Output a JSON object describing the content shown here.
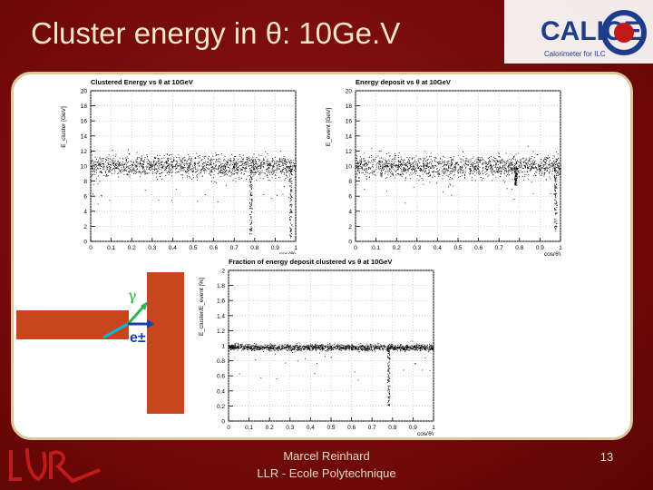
{
  "slide": {
    "title": "Cluster energy in θ: 10Ge.V",
    "footer_line1": "Marcel Reinhard",
    "footer_line2": "LLR - Ecole Polytechnique",
    "page_number": "13"
  },
  "logo": {
    "text": "CALICE",
    "subtitle": "Calorimeter for ILC"
  },
  "diagram": {
    "gamma_label": "γ",
    "electron_label": "e±"
  },
  "colors": {
    "background": "#7a0b0b",
    "title_text": "#f2e6c8",
    "slab": "#c8461e",
    "gamma_arrow": "#2db34a",
    "electron_arrow": "#1a3fa6",
    "scatter": "#000000"
  },
  "chart_data": [
    {
      "type": "scatter",
      "title": "Clustered Energy vs θ at 10GeV",
      "xlabel": "cos(θ)",
      "ylabel": "E_cluster [GeV]",
      "xlim": [
        0,
        1
      ],
      "ylim": [
        0,
        20
      ],
      "xticks": [
        "0",
        "0.1",
        "0.2",
        "0.3",
        "0.4",
        "0.5",
        "0.6",
        "0.7",
        "0.8",
        "0.9",
        "1"
      ],
      "yticks": [
        "0",
        "2",
        "4",
        "6",
        "8",
        "10",
        "12",
        "14",
        "16",
        "18",
        "20"
      ],
      "band_center": 10,
      "band_spread": 0.7,
      "dips": [
        {
          "x": 0.78,
          "min_y": 1
        },
        {
          "x": 0.975,
          "min_y": 0.5
        }
      ],
      "grid": true
    },
    {
      "type": "scatter",
      "title": "Energy deposit vs θ at 10GeV",
      "xlabel": "cos(θ)",
      "ylabel": "E_event [GeV]",
      "xlim": [
        0,
        1
      ],
      "ylim": [
        0,
        20
      ],
      "xticks": [
        "0",
        "0.1",
        "0.2",
        "0.3",
        "0.4",
        "0.5",
        "0.6",
        "0.7",
        "0.8",
        "0.9",
        "1"
      ],
      "yticks": [
        "0",
        "2",
        "4",
        "6",
        "8",
        "10",
        "12",
        "14",
        "16",
        "18",
        "20"
      ],
      "band_center": 10,
      "band_spread": 0.7,
      "dips": [
        {
          "x": 0.78,
          "min_y": 7.5
        },
        {
          "x": 0.975,
          "min_y": 1
        }
      ],
      "grid": true
    },
    {
      "type": "scatter",
      "title": "Fraction of energy deposit clustered vs θ at 10GeV",
      "xlabel": "cos(θ)",
      "ylabel": "E_cluster/E_event [%]",
      "xlim": [
        0,
        1
      ],
      "ylim": [
        0,
        2
      ],
      "xticks": [
        "0",
        "0.1",
        "0.2",
        "0.3",
        "0.4",
        "0.5",
        "0.6",
        "0.7",
        "0.8",
        "0.9",
        "1"
      ],
      "yticks": [
        "0",
        "0.2",
        "0.4",
        "0.6",
        "0.8",
        "1",
        "1.2",
        "1.4",
        "1.6",
        "1.8",
        "2"
      ],
      "band_center": 0.98,
      "band_spread": 0.02,
      "dips": [
        {
          "x": 0.78,
          "min_y": 0.2
        }
      ],
      "grid": true
    }
  ]
}
